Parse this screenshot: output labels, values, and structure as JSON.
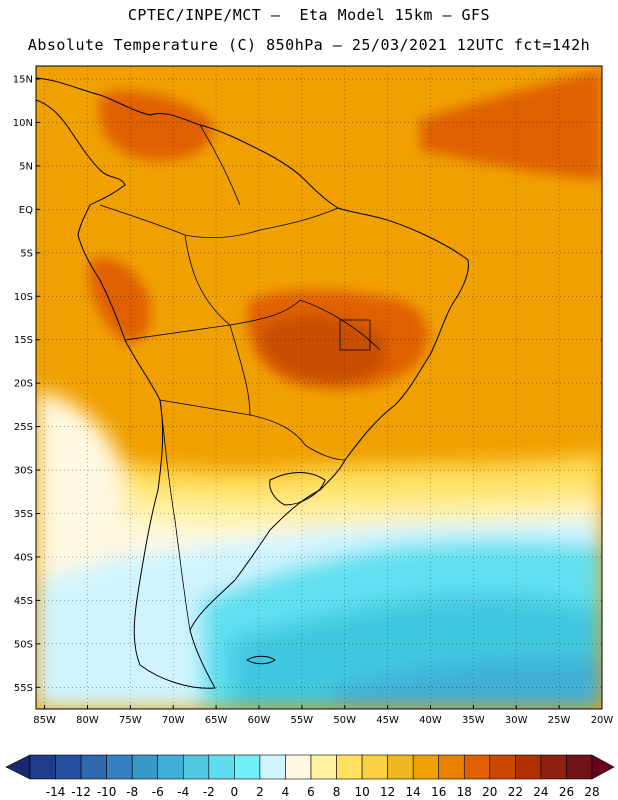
{
  "header": {
    "line1": "CPTEC/INPE/MCT –  Eta Model 15km – GFS",
    "line2": "Absolute Temperature (C) 850hPa – 25/03/2021 12UTC fct=142h"
  },
  "map": {
    "lat_labels": [
      "15N",
      "10N",
      "5N",
      "EQ",
      "5S",
      "10S",
      "15S",
      "20S",
      "25S",
      "30S",
      "35S",
      "40S",
      "45S",
      "50S",
      "55S"
    ],
    "lon_labels": [
      "85W",
      "80W",
      "75W",
      "70W",
      "65W",
      "60W",
      "55W",
      "50W",
      "45W",
      "40W",
      "35W",
      "30W",
      "25W",
      "20W"
    ],
    "lat_range": [
      -57.5,
      16.5
    ],
    "lon_range": [
      -86,
      -20
    ],
    "grid": true,
    "colors": {
      "land_base": "#f0a000",
      "ocean_tropical": "#f0a000",
      "warm_core": "#e06000",
      "hot_core": "#c85000",
      "subtropical_yellow": "#ffe060",
      "pale_yellow": "#fff0a0",
      "cream": "#fff8e0",
      "light_cyan": "#d0f4ff",
      "cyan": "#60e0f0",
      "mid_cyan": "#40c8e0",
      "cold_blue": "#40b0d8"
    }
  },
  "colorbar": {
    "labels": [
      "-14",
      "-12",
      "-10",
      "-8",
      "-6",
      "-4",
      "-2",
      "0",
      "2",
      "4",
      "6",
      "8",
      "10",
      "12",
      "14",
      "16",
      "18",
      "20",
      "22",
      "24",
      "26",
      "28"
    ],
    "colors": [
      "#1e3c8c",
      "#2850a0",
      "#3068b0",
      "#3480c0",
      "#3898c8",
      "#40b0d8",
      "#50c8e0",
      "#60dcec",
      "#70f0f8",
      "#d0f4ff",
      "#fff8e0",
      "#fff0a0",
      "#ffe060",
      "#f8d040",
      "#f0b820",
      "#f0a000",
      "#e88000",
      "#e06000",
      "#c84800",
      "#b03000",
      "#902010",
      "#701418"
    ],
    "low_arrow_color": "#1a2870",
    "high_arrow_color": "#6a0020"
  }
}
